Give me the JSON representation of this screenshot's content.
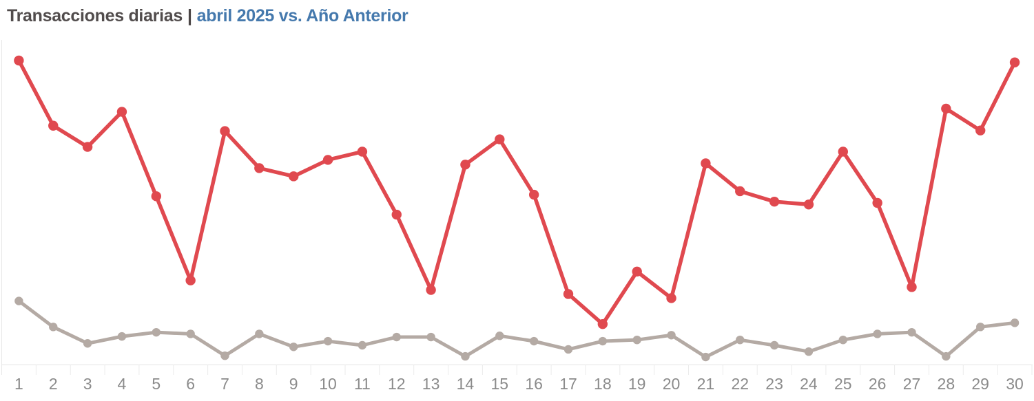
{
  "title": {
    "main": "Transacciones diarias",
    "separator": "|",
    "highlight": "abril 2025 vs. Año Anterior"
  },
  "colors": {
    "title_main": "#514c4c",
    "title_highlight": "#4579ad",
    "series_current": "#e0494f",
    "series_previous": "#b4aaa4",
    "axis_line": "#e3e3e3",
    "tick_line": "#ebebeb",
    "panel_border": "#e8e8e8",
    "tick_label": "#8b8b8b"
  },
  "chart_data": {
    "type": "line",
    "title": "Transacciones diarias | abril 2025 vs. Año Anterior",
    "xlabel": "",
    "ylabel": "",
    "x": [
      "1",
      "2",
      "3",
      "4",
      "5",
      "6",
      "7",
      "8",
      "9",
      "10",
      "11",
      "12",
      "13",
      "14",
      "15",
      "16",
      "17",
      "18",
      "19",
      "20",
      "21",
      "22",
      "23",
      "24",
      "25",
      "26",
      "27",
      "28",
      "29",
      "30"
    ],
    "series": [
      {
        "id": "abril-2025",
        "name": "abril 2025",
        "color": "#e0494f",
        "values": [
          100.0,
          79.4,
          72.7,
          83.8,
          57.1,
          30.5,
          77.7,
          66.0,
          63.4,
          68.6,
          71.2,
          51.3,
          27.5,
          67.1,
          75.1,
          57.6,
          26.2,
          16.7,
          33.3,
          24.9,
          67.5,
          58.7,
          55.4,
          54.5,
          71.2,
          55.0,
          28.4,
          84.8,
          77.9,
          99.4
        ]
      },
      {
        "id": "ano-anterior",
        "name": "Año Anterior",
        "color": "#b4aaa4",
        "values": [
          24.0,
          15.8,
          10.6,
          12.8,
          14.1,
          13.6,
          6.7,
          13.6,
          9.5,
          11.3,
          10.0,
          12.6,
          12.6,
          6.5,
          13.0,
          11.3,
          8.7,
          11.3,
          11.7,
          13.2,
          6.3,
          11.7,
          10.0,
          8.0,
          11.7,
          13.6,
          14.1,
          6.5,
          15.8,
          17.1
        ]
      }
    ],
    "ylim": [
      0,
      105
    ],
    "y_axis_visible": false,
    "grid": false,
    "legend_position": "none",
    "units": "relative scale (no y-axis shown in image)",
    "markers": true
  }
}
